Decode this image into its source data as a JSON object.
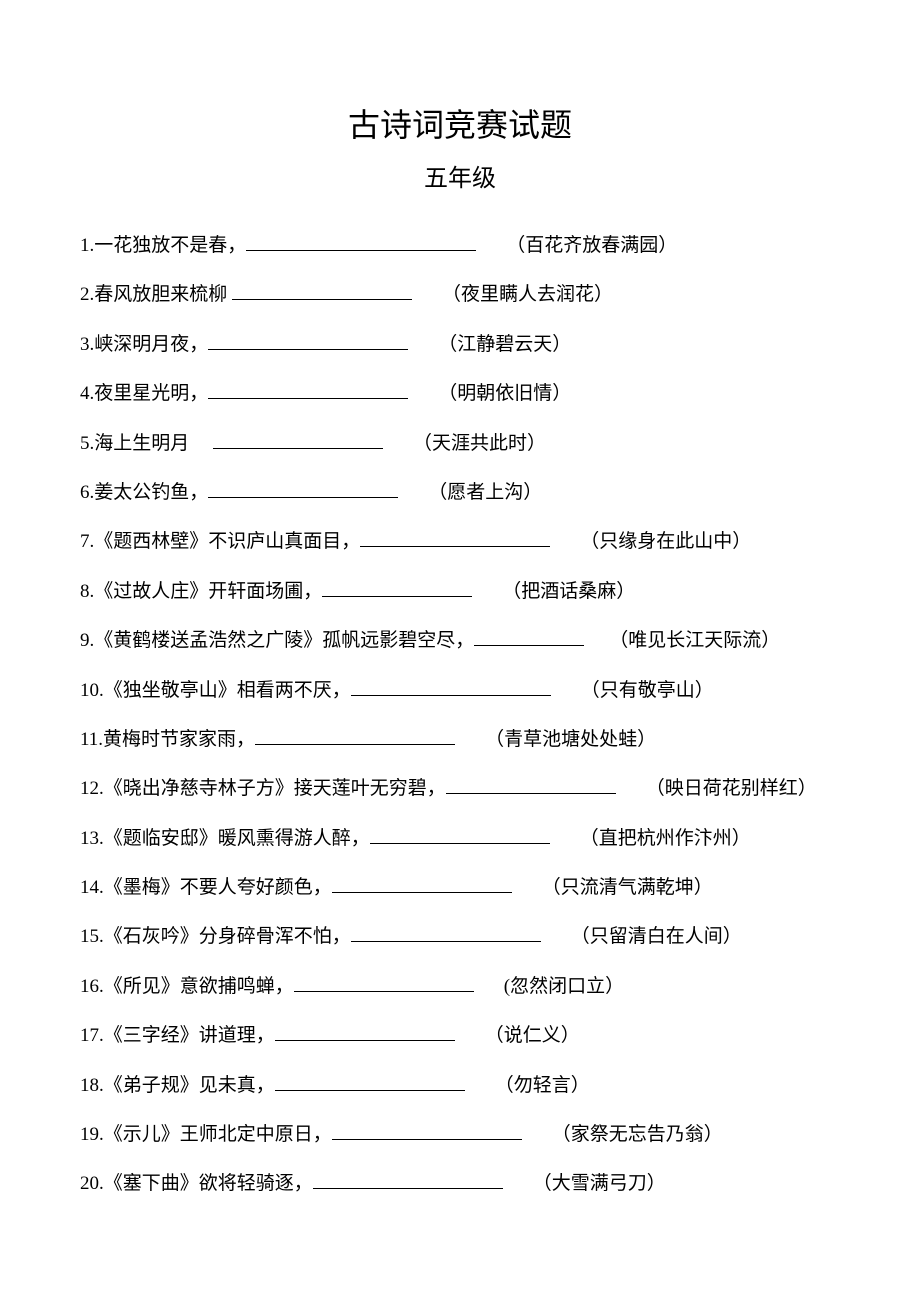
{
  "title": "古诗词竞赛试题",
  "subtitle": "五年级",
  "page_bg": "#ffffff",
  "text_color": "#000000",
  "questions": [
    {
      "num": "1",
      "prompt": "一花独放不是春，",
      "blank_width": 230,
      "gap": 30,
      "answer": "（百花齐放春满园）"
    },
    {
      "num": "2",
      "prompt": "春风放胆来梳柳 ",
      "blank_width": 180,
      "gap": 30,
      "answer": "（夜里瞒人去润花）"
    },
    {
      "num": "3",
      "prompt": "峡深明月夜，",
      "blank_width": 200,
      "gap": 30,
      "answer": "（江静碧云天）"
    },
    {
      "num": "4",
      "prompt": "夜里星光明，",
      "blank_width": 200,
      "gap": 30,
      "answer": "（明朝依旧情）"
    },
    {
      "num": "5",
      "prompt": "海上生明月 　",
      "blank_width": 170,
      "gap": 30,
      "answer": "（天涯共此时）"
    },
    {
      "num": "6",
      "prompt": "姜太公钓鱼，",
      "blank_width": 190,
      "gap": 30,
      "answer": "（愿者上沟）"
    },
    {
      "num": "7",
      "prompt": "《题西林壁》不识庐山真面目，",
      "blank_width": 190,
      "gap": 30,
      "answer": "（只缘身在此山中）"
    },
    {
      "num": "8",
      "prompt": "《过故人庄》开轩面场圃，",
      "blank_width": 150,
      "gap": 30,
      "answer": "（把酒话桑麻）"
    },
    {
      "num": "9",
      "prompt": "《黄鹤楼送孟浩然之广陵》孤帆远影碧空尽，",
      "blank_width": 110,
      "gap": 25,
      "answer": "（唯见长江天际流）"
    },
    {
      "num": "10",
      "prompt": "《独坐敬亭山》相看两不厌，",
      "blank_width": 200,
      "gap": 30,
      "answer": "（只有敬亭山）"
    },
    {
      "num": "11",
      "prompt": "黄梅时节家家雨，",
      "blank_width": 200,
      "gap": 30,
      "answer": "（青草池塘处处蛙）"
    },
    {
      "num": "12",
      "prompt": "《晓出净慈寺林子方》接天莲叶无穷碧，",
      "blank_width": 170,
      "gap": 30,
      "answer": "（映日荷花别样红）"
    },
    {
      "num": "13",
      "prompt": "《题临安邸》暖风熏得游人醉，",
      "blank_width": 180,
      "gap": 30,
      "answer": "（直把杭州作汴州）"
    },
    {
      "num": "14",
      "prompt": "《墨梅》不要人夸好颜色，",
      "blank_width": 180,
      "gap": 30,
      "answer": "（只流清气满乾坤）"
    },
    {
      "num": "15",
      "prompt": "《石灰吟》分身碎骨浑不怕，",
      "blank_width": 190,
      "gap": 30,
      "answer": "（只留清白在人间）"
    },
    {
      "num": "16",
      "prompt": "《所见》意欲捕鸣蝉，",
      "blank_width": 180,
      "gap": 30,
      "answer": "(忽然闭口立）"
    },
    {
      "num": "17",
      "prompt": "《三字经》讲道理，",
      "blank_width": 180,
      "gap": 30,
      "answer": "（说仁义）"
    },
    {
      "num": "18",
      "prompt": "《弟子规》见未真，",
      "blank_width": 190,
      "gap": 30,
      "answer": "（勿轻言）"
    },
    {
      "num": "19",
      "prompt": "《示儿》王师北定中原日，",
      "blank_width": 190,
      "gap": 30,
      "answer": "（家祭无忘告乃翁）"
    },
    {
      "num": "20",
      "prompt": "《塞下曲》欲将轻骑逐，",
      "blank_width": 190,
      "gap": 30,
      "answer": "（大雪满弓刀）"
    }
  ]
}
